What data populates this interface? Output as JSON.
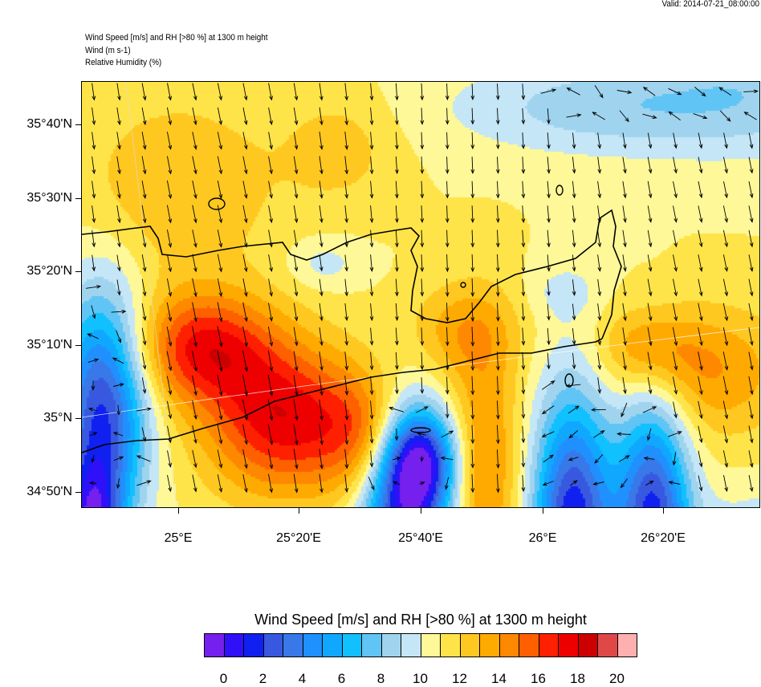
{
  "valid_time": "Valid: 2014-07-21_08:00:00",
  "header": {
    "line1": "Wind Speed [m/s] and RH [>80 %] at 1300 m height",
    "line2": "Wind   (m s-1)",
    "line3": "Relative Humidity   (%)"
  },
  "axes": {
    "lat_labels": [
      "35°40'N",
      "35°30'N",
      "35°20'N",
      "35°10'N",
      "35°N",
      "34°50'N"
    ],
    "lon_labels": [
      "25°E",
      "25°20'E",
      "25°40'E",
      "26°E",
      "26°20'E"
    ]
  },
  "colorbar": {
    "title": "Wind Speed [m/s] and RH [>80 %] at 1300 m height",
    "labels": [
      "0",
      "2",
      "4",
      "6",
      "8",
      "10",
      "12",
      "14",
      "16",
      "18",
      "20"
    ],
    "colors": [
      "#7520EE",
      "#3010F8",
      "#1020F0",
      "#3858E0",
      "#3878E8",
      "#2090FF",
      "#10A8FF",
      "#10C0FF",
      "#60C4F4",
      "#A0D4EE",
      "#C4E6F6",
      "#FEF898",
      "#FEE448",
      "#FEC820",
      "#FEAA00",
      "#FE8800",
      "#FE6000",
      "#FE2000",
      "#EE0000",
      "#CC0000",
      "#E04848",
      "#FEB0B0"
    ]
  }
}
